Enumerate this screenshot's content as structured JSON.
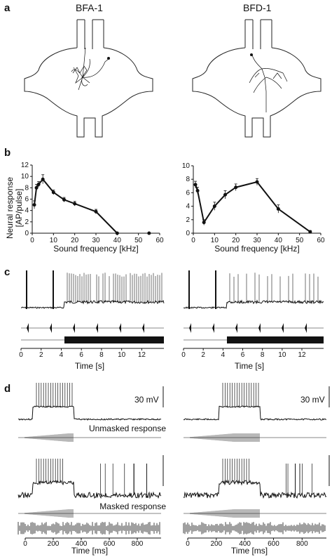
{
  "panels": {
    "a": {
      "label": "a",
      "titles": [
        "BFA-1",
        "BFD-1"
      ]
    },
    "b": {
      "label": "b"
    },
    "c": {
      "label": "c"
    },
    "d": {
      "label": "d"
    }
  },
  "chart_data": [
    {
      "type": "line",
      "panel": "b-left",
      "ylabel_line1": "Neural response",
      "ylabel_line2": "[AP/pulse]",
      "xlabel": "Sound frequency [kHz]",
      "xlim": [
        0,
        60
      ],
      "ylim": [
        0,
        12
      ],
      "xticks": [
        0,
        10,
        20,
        30,
        40,
        50,
        60
      ],
      "yticks": [
        0,
        2,
        4,
        6,
        8,
        10,
        12
      ],
      "series": [
        {
          "x": [
            1,
            2,
            3,
            5,
            10,
            15,
            20,
            30,
            40
          ],
          "y": [
            5.0,
            8.0,
            8.6,
            9.5,
            7.2,
            5.9,
            5.2,
            3.8,
            0.0
          ],
          "err": [
            0.7,
            0.6,
            0.5,
            0.8,
            0.4,
            0.4,
            0.4,
            0.4,
            0.1
          ]
        }
      ],
      "extra_points": [
        {
          "x": 55,
          "y": 0
        }
      ]
    },
    {
      "type": "line",
      "panel": "b-right",
      "xlabel": "Sound frequency [kHz]",
      "xlim": [
        0,
        60
      ],
      "ylim": [
        0,
        10
      ],
      "xticks": [
        0,
        10,
        20,
        30,
        40,
        50,
        60
      ],
      "yticks": [
        0,
        2,
        4,
        6,
        8,
        10
      ],
      "series": [
        {
          "x": [
            1,
            2,
            5,
            10,
            15,
            20,
            30,
            40,
            55
          ],
          "y": [
            7.2,
            6.3,
            1.6,
            4.0,
            5.7,
            6.8,
            7.6,
            3.6,
            0.2
          ],
          "err": [
            0.5,
            0.5,
            0.4,
            0.6,
            0.6,
            0.5,
            0.5,
            0.6,
            0.2
          ]
        }
      ]
    }
  ],
  "panel_c": {
    "xlabel": "Time [s]",
    "xticks": [
      0,
      2,
      4,
      6,
      8,
      10,
      12
    ]
  },
  "panel_d": {
    "scale": "30 mV",
    "unmasked": "Unmasked response",
    "masked": "Masked response",
    "xlabel": "Time [ms]",
    "xticks": [
      0,
      200,
      400,
      600,
      800
    ]
  }
}
